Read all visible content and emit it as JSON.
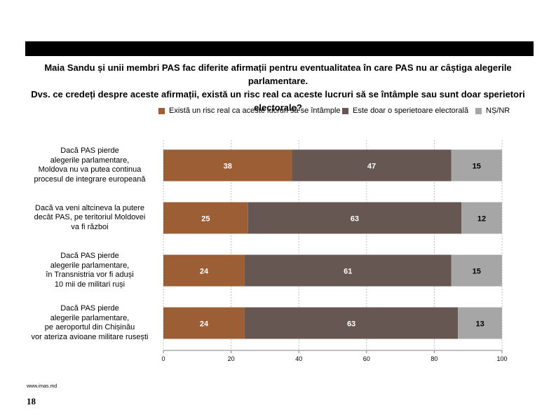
{
  "title": {
    "line1": "Maia Sandu și unii membri PAS fac diferite afirmații pentru eventualitatea în care PAS nu ar câștiga alegerile parlamentare.",
    "line2": "Dvs. ce credeți despre aceste afirmații, există un risc real ca aceste lucruri să se întâmple sau sunt doar sperietori electorale?"
  },
  "footer": {
    "url": "www.imas.md",
    "page": "18"
  },
  "chart_data": {
    "type": "bar",
    "orientation": "horizontal",
    "stacked": true,
    "categories": [
      [
        "Dacă PAS pierde",
        "alegerile parlamentare,",
        "Moldova nu va putea continua",
        "procesul de integrare europeană"
      ],
      [
        "Dacă va veni altcineva la putere",
        "decât PAS, pe teritoriul Moldovei",
        "va fi război"
      ],
      [
        "Dacă PAS pierde",
        "alegerile parlamentare,",
        "în Transnistria vor fi aduși",
        "10 mii de militari ruși"
      ],
      [
        "Dacă PAS pierde",
        "alegerile parlamentare,",
        "pe aeroportul din Chișinău",
        "vor ateriza avioane militare rusești"
      ]
    ],
    "series": [
      {
        "name": "Există un risc real ca aceste lucruri să se întâmple",
        "color": "#9c5f35",
        "values": [
          38,
          25,
          24,
          24
        ]
      },
      {
        "name": "Este doar o sperietoare electorală",
        "color": "#675752",
        "values": [
          47,
          63,
          61,
          63
        ]
      },
      {
        "name": "NȘ/NR",
        "color": "#a6a6a6",
        "values": [
          15,
          12,
          15,
          13
        ]
      }
    ],
    "xlim": [
      0,
      100
    ],
    "xticks": [
      0,
      20,
      40,
      60,
      80,
      100
    ],
    "grid": true,
    "legend": "top"
  }
}
